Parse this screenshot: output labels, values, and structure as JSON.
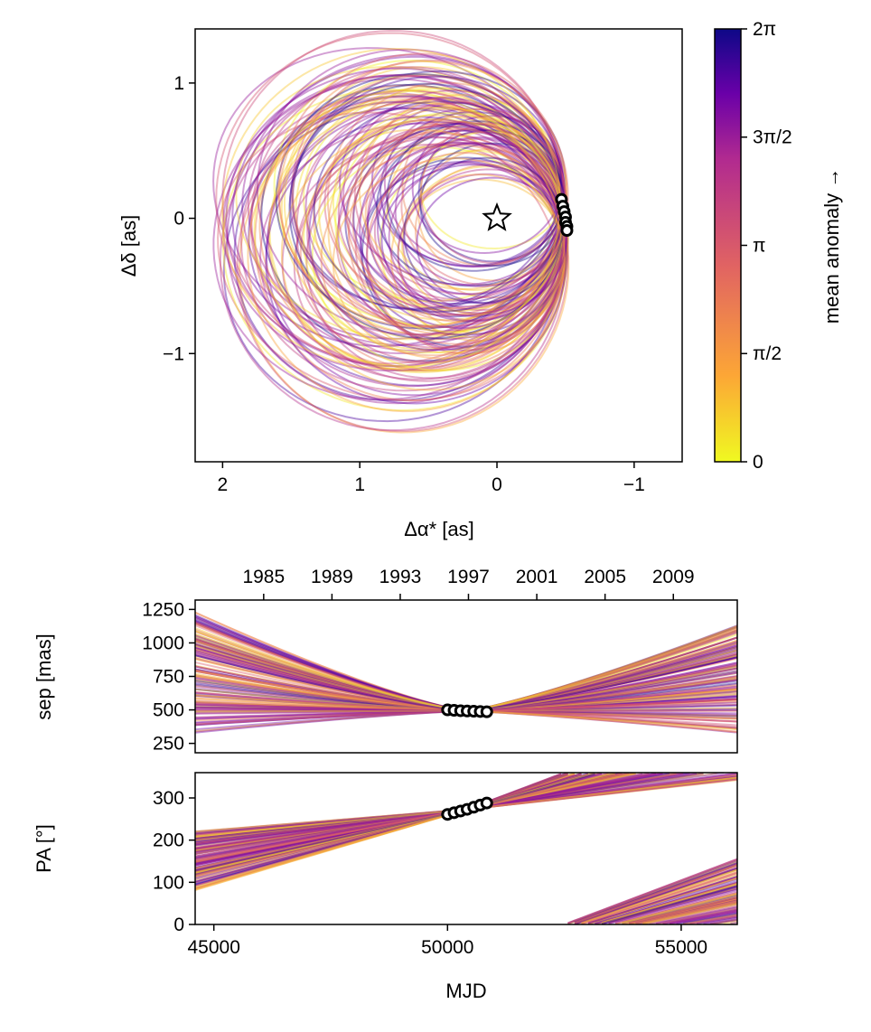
{
  "chart_data": [
    {
      "type": "line",
      "panel": "orbit",
      "xlabel": "Δα* [as]",
      "ylabel": "Δδ [as]",
      "xlim": [
        2.2,
        -1.35
      ],
      "ylim": [
        -1.8,
        1.4
      ],
      "xticks": [
        2,
        1,
        0,
        -1
      ],
      "xtick_labels": [
        "2",
        "1",
        "0",
        "−1"
      ],
      "yticks": [
        1,
        0,
        -1
      ],
      "ytick_labels": [
        "1",
        "0",
        "−1"
      ],
      "star_marker": {
        "x": 0,
        "y": 0
      },
      "observations": [
        {
          "x": -0.47,
          "y": 0.14
        },
        {
          "x": -0.48,
          "y": 0.09
        },
        {
          "x": -0.49,
          "y": 0.05
        },
        {
          "x": -0.5,
          "y": 0.01
        },
        {
          "x": -0.5,
          "y": -0.03
        },
        {
          "x": -0.51,
          "y": -0.06
        },
        {
          "x": -0.51,
          "y": -0.09
        }
      ],
      "n_orbits": 120,
      "colormap": "plasma (reversed)"
    },
    {
      "type": "line",
      "panel": "separation",
      "xlabel": "MJD",
      "ylabel": "sep [mas]",
      "xlim": [
        44600,
        56200
      ],
      "ylim": [
        180,
        1320
      ],
      "yticks": [
        250,
        500,
        750,
        1000,
        1250
      ],
      "ytick_labels": [
        "250",
        "500",
        "750",
        "1000",
        "1250"
      ],
      "top_xticks_years": [
        "1985",
        "1989",
        "1993",
        "1997",
        "2001",
        "2005",
        "2009"
      ],
      "top_xticks_mjd": [
        46066,
        47527,
        48988,
        50448,
        51910,
        53371,
        54832
      ],
      "observations": [
        {
          "mjd": 50000,
          "sep": 500
        },
        {
          "mjd": 50140,
          "sep": 497
        },
        {
          "mjd": 50280,
          "sep": 494
        },
        {
          "mjd": 50420,
          "sep": 492
        },
        {
          "mjd": 50560,
          "sep": 490
        },
        {
          "mjd": 50700,
          "sep": 488
        },
        {
          "mjd": 50840,
          "sep": 486
        }
      ]
    },
    {
      "type": "line",
      "panel": "position-angle",
      "xlabel": "MJD",
      "ylabel": "PA [°]",
      "xlim": [
        44600,
        56200
      ],
      "ylim": [
        0,
        360
      ],
      "xticks": [
        45000,
        50000,
        55000
      ],
      "xtick_labels": [
        "45000",
        "50000",
        "55000"
      ],
      "yticks": [
        0,
        100,
        200,
        300
      ],
      "ytick_labels": [
        "0",
        "100",
        "200",
        "300"
      ],
      "observations": [
        {
          "mjd": 50000,
          "pa": 261
        },
        {
          "mjd": 50140,
          "pa": 265
        },
        {
          "mjd": 50280,
          "pa": 269
        },
        {
          "mjd": 50420,
          "pa": 273
        },
        {
          "mjd": 50560,
          "pa": 278
        },
        {
          "mjd": 50700,
          "pa": 283
        },
        {
          "mjd": 50840,
          "pa": 288
        }
      ]
    }
  ],
  "colorbar": {
    "label": "mean anomaly →",
    "tick_labels": [
      "0",
      "π/2",
      "π",
      "3π/2",
      "2π"
    ],
    "tick_values": [
      0,
      1.5708,
      3.1416,
      4.7124,
      6.2832
    ],
    "colors": [
      "#f0f921",
      "#fca636",
      "#e16462",
      "#b12a90",
      "#6a00a8",
      "#0d0887"
    ]
  }
}
